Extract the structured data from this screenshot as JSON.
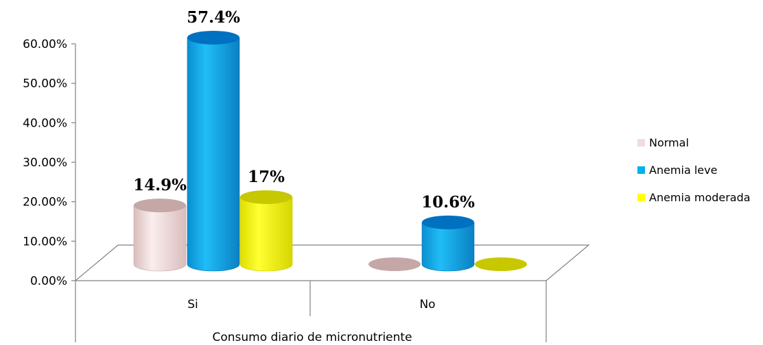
{
  "chart_data": {
    "type": "bar",
    "style": "3d-cylinder",
    "categories": [
      "Si",
      "No"
    ],
    "xlabel": "Consumo diario de micronutriente",
    "ylabel": "",
    "ylim": [
      0,
      60
    ],
    "yticks": [
      "0.00%",
      "10.00%",
      "20.00%",
      "30.00%",
      "40.00%",
      "50.00%",
      "60.00%"
    ],
    "legend_position": "right",
    "series": [
      {
        "name": "Normal",
        "values": [
          14.9,
          0
        ],
        "labels": [
          "14.9%",
          ""
        ],
        "color": "#f2dcdb",
        "top_color": "#c4a7a6"
      },
      {
        "name": "Anemia leve",
        "values": [
          57.4,
          10.6
        ],
        "labels": [
          "57.4%",
          "10.6%"
        ],
        "color": "#00b0f0",
        "top_color": "#0070c0"
      },
      {
        "name": "Anemia moderada",
        "values": [
          17,
          0
        ],
        "labels": [
          "17%",
          ""
        ],
        "color": "#ffff00",
        "top_color": "#c8c800"
      }
    ]
  }
}
